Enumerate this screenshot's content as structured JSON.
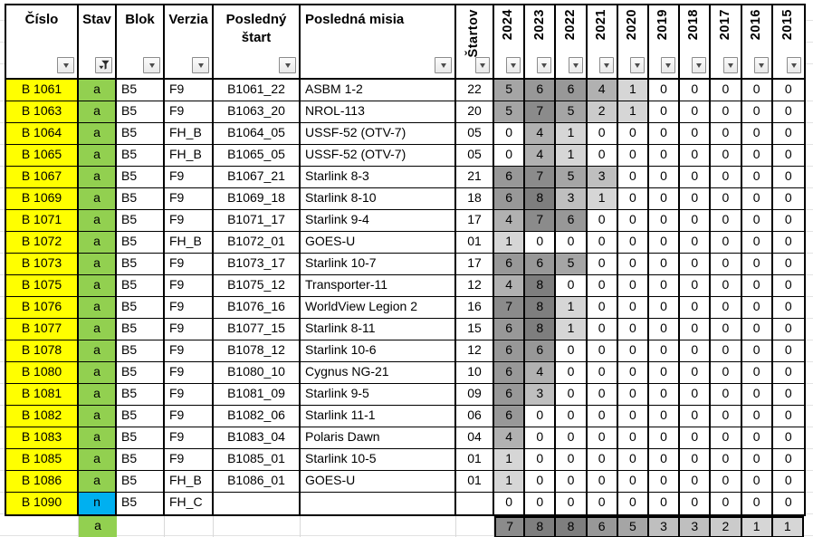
{
  "table": {
    "columns": [
      {
        "id": "cislo",
        "label": "Číslo",
        "rotated": false,
        "filter_active": false
      },
      {
        "id": "stav",
        "label": "Stav",
        "rotated": false,
        "filter_active": true
      },
      {
        "id": "blok",
        "label": "Blok",
        "rotated": false,
        "filter_active": false
      },
      {
        "id": "verzia",
        "label": "Verzia",
        "rotated": false,
        "filter_active": false
      },
      {
        "id": "posledny_start",
        "label": "Posledný štart",
        "rotated": false,
        "filter_active": false
      },
      {
        "id": "posledna_misia",
        "label": "Posledná misia",
        "rotated": false,
        "filter_active": false
      },
      {
        "id": "startov",
        "label": "Štartov",
        "rotated": true,
        "filter_active": false
      }
    ],
    "years": [
      "2024",
      "2023",
      "2022",
      "2021",
      "2020",
      "2019",
      "2018",
      "2017",
      "2016",
      "2015"
    ],
    "rows": [
      {
        "cislo": "B 1061",
        "stav": "a",
        "blok": "B5",
        "verzia": "F9",
        "posledny_start": "B1061_22",
        "posledna_misia": "ASBM 1-2",
        "startov": "22",
        "years": [
          5,
          6,
          6,
          4,
          1,
          0,
          0,
          0,
          0,
          0
        ]
      },
      {
        "cislo": "B 1063",
        "stav": "a",
        "blok": "B5",
        "verzia": "F9",
        "posledny_start": "B1063_20",
        "posledna_misia": "NROL-113",
        "startov": "20",
        "years": [
          5,
          7,
          5,
          2,
          1,
          0,
          0,
          0,
          0,
          0
        ]
      },
      {
        "cislo": "B 1064",
        "stav": "a",
        "blok": "B5",
        "verzia": "FH_B",
        "posledny_start": "B1064_05",
        "posledna_misia": "USSF-52 (OTV-7)",
        "startov": "05",
        "years": [
          0,
          4,
          1,
          0,
          0,
          0,
          0,
          0,
          0,
          0
        ]
      },
      {
        "cislo": "B 1065",
        "stav": "a",
        "blok": "B5",
        "verzia": "FH_B",
        "posledny_start": "B1065_05",
        "posledna_misia": "USSF-52 (OTV-7)",
        "startov": "05",
        "years": [
          0,
          4,
          1,
          0,
          0,
          0,
          0,
          0,
          0,
          0
        ]
      },
      {
        "cislo": "B 1067",
        "stav": "a",
        "blok": "B5",
        "verzia": "F9",
        "posledny_start": "B1067_21",
        "posledna_misia": "Starlink 8-3",
        "startov": "21",
        "years": [
          6,
          7,
          5,
          3,
          0,
          0,
          0,
          0,
          0,
          0
        ]
      },
      {
        "cislo": "B 1069",
        "stav": "a",
        "blok": "B5",
        "verzia": "F9",
        "posledny_start": "B1069_18",
        "posledna_misia": "Starlink 8-10",
        "startov": "18",
        "years": [
          6,
          8,
          3,
          1,
          0,
          0,
          0,
          0,
          0,
          0
        ]
      },
      {
        "cislo": "B 1071",
        "stav": "a",
        "blok": "B5",
        "verzia": "F9",
        "posledny_start": "B1071_17",
        "posledna_misia": "Starlink 9-4",
        "startov": "17",
        "years": [
          4,
          7,
          6,
          0,
          0,
          0,
          0,
          0,
          0,
          0
        ]
      },
      {
        "cislo": "B 1072",
        "stav": "a",
        "blok": "B5",
        "verzia": "FH_B",
        "posledny_start": "B1072_01",
        "posledna_misia": "GOES-U",
        "startov": "01",
        "years": [
          1,
          0,
          0,
          0,
          0,
          0,
          0,
          0,
          0,
          0
        ]
      },
      {
        "cislo": "B 1073",
        "stav": "a",
        "blok": "B5",
        "verzia": "F9",
        "posledny_start": "B1073_17",
        "posledna_misia": "Starlink 10-7",
        "startov": "17",
        "years": [
          6,
          6,
          5,
          0,
          0,
          0,
          0,
          0,
          0,
          0
        ]
      },
      {
        "cislo": "B 1075",
        "stav": "a",
        "blok": "B5",
        "verzia": "F9",
        "posledny_start": "B1075_12",
        "posledna_misia": "Transporter-11",
        "startov": "12",
        "years": [
          4,
          8,
          0,
          0,
          0,
          0,
          0,
          0,
          0,
          0
        ]
      },
      {
        "cislo": "B 1076",
        "stav": "a",
        "blok": "B5",
        "verzia": "F9",
        "posledny_start": "B1076_16",
        "posledna_misia": "WorldView Legion 2",
        "startov": "16",
        "years": [
          7,
          8,
          1,
          0,
          0,
          0,
          0,
          0,
          0,
          0
        ]
      },
      {
        "cislo": "B 1077",
        "stav": "a",
        "blok": "B5",
        "verzia": "F9",
        "posledny_start": "B1077_15",
        "posledna_misia": "Starlink 8-11",
        "startov": "15",
        "years": [
          6,
          8,
          1,
          0,
          0,
          0,
          0,
          0,
          0,
          0
        ]
      },
      {
        "cislo": "B 1078",
        "stav": "a",
        "blok": "B5",
        "verzia": "F9",
        "posledny_start": "B1078_12",
        "posledna_misia": "Starlink 10-6",
        "startov": "12",
        "years": [
          6,
          6,
          0,
          0,
          0,
          0,
          0,
          0,
          0,
          0
        ]
      },
      {
        "cislo": "B 1080",
        "stav": "a",
        "blok": "B5",
        "verzia": "F9",
        "posledny_start": "B1080_10",
        "posledna_misia": "Cygnus NG-21",
        "startov": "10",
        "years": [
          6,
          4,
          0,
          0,
          0,
          0,
          0,
          0,
          0,
          0
        ]
      },
      {
        "cislo": "B 1081",
        "stav": "a",
        "blok": "B5",
        "verzia": "F9",
        "posledny_start": "B1081_09",
        "posledna_misia": "Starlink 9-5",
        "startov": "09",
        "years": [
          6,
          3,
          0,
          0,
          0,
          0,
          0,
          0,
          0,
          0
        ]
      },
      {
        "cislo": "B 1082",
        "stav": "a",
        "blok": "B5",
        "verzia": "F9",
        "posledny_start": "B1082_06",
        "posledna_misia": "Starlink 11-1",
        "startov": "06",
        "years": [
          6,
          0,
          0,
          0,
          0,
          0,
          0,
          0,
          0,
          0
        ]
      },
      {
        "cislo": "B 1083",
        "stav": "a",
        "blok": "B5",
        "verzia": "F9",
        "posledny_start": "B1083_04",
        "posledna_misia": "Polaris Dawn",
        "startov": "04",
        "years": [
          4,
          0,
          0,
          0,
          0,
          0,
          0,
          0,
          0,
          0
        ]
      },
      {
        "cislo": "B 1085",
        "stav": "a",
        "blok": "B5",
        "verzia": "F9",
        "posledny_start": "B1085_01",
        "posledna_misia": "Starlink 10-5",
        "startov": "01",
        "years": [
          1,
          0,
          0,
          0,
          0,
          0,
          0,
          0,
          0,
          0
        ]
      },
      {
        "cislo": "B 1086",
        "stav": "a",
        "blok": "B5",
        "verzia": "FH_B",
        "posledny_start": "B1086_01",
        "posledna_misia": "GOES-U",
        "startov": "01",
        "years": [
          1,
          0,
          0,
          0,
          0,
          0,
          0,
          0,
          0,
          0
        ]
      },
      {
        "cislo": "B 1090",
        "stav": "n",
        "blok": "B5",
        "verzia": "FH_C",
        "posledny_start": "",
        "posledna_misia": "",
        "startov": "",
        "years": [
          0,
          0,
          0,
          0,
          0,
          0,
          0,
          0,
          0,
          0
        ]
      }
    ],
    "summary": {
      "stav": "a",
      "year_values": [
        7,
        8,
        8,
        6,
        5,
        3,
        3,
        2,
        1,
        1
      ]
    }
  },
  "colors": {
    "cislo_bg": "#FFFF00",
    "stav_active_bg": "#92D050",
    "stav_new_bg": "#00B0F0",
    "shading_scale": [
      "#FFFFFF",
      "#D6D6D6",
      "#CBCBCB",
      "#BFBFBF",
      "#B1B1B1",
      "#A5A5A5",
      "#989898",
      "#8B8B8B",
      "#7E7E7E"
    ]
  },
  "icons": {
    "filter_dropdown": "chevron-down",
    "filter_applied": "funnel"
  }
}
